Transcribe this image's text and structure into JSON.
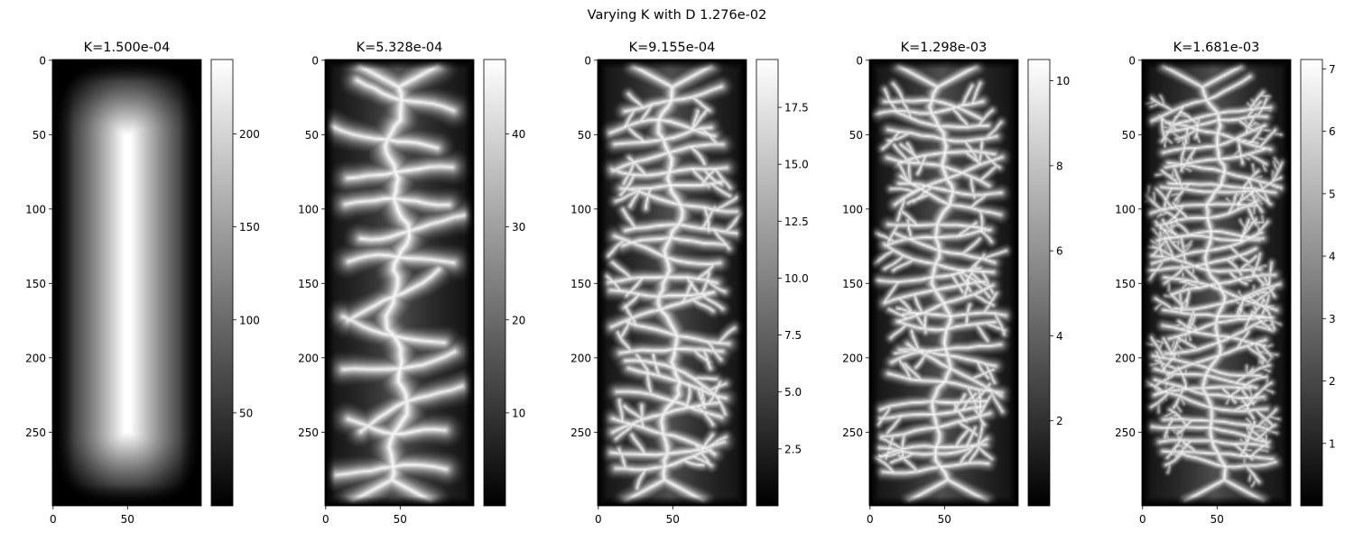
{
  "figure": {
    "title": "Varying K with D 1.276e-02"
  },
  "chart_data": [
    {
      "type": "heatmap",
      "title": "K=1.500e-04",
      "pattern": "ridge",
      "colormap": "gray",
      "x_range": [
        0,
        99
      ],
      "y_range": [
        0,
        299
      ],
      "x_ticks": [
        0,
        50
      ],
      "y_ticks": [
        0,
        50,
        100,
        150,
        200,
        250
      ],
      "y_inverted": true,
      "colorbar": {
        "min": 0,
        "max": 240,
        "ticks": [
          50,
          100,
          150,
          200
        ],
        "tick_labels": [
          "50",
          "100",
          "150",
          "200"
        ]
      }
    },
    {
      "type": "heatmap",
      "title": "K=5.328e-04",
      "pattern": "dendritic",
      "colormap": "gray",
      "x_range": [
        0,
        99
      ],
      "y_range": [
        0,
        299
      ],
      "x_ticks": [
        0,
        50
      ],
      "y_ticks": [
        0,
        50,
        100,
        150,
        200,
        250
      ],
      "y_inverted": true,
      "colorbar": {
        "min": 0,
        "max": 48,
        "ticks": [
          10,
          20,
          30,
          40
        ],
        "tick_labels": [
          "10",
          "20",
          "30",
          "40"
        ]
      }
    },
    {
      "type": "heatmap",
      "title": "K=9.155e-04",
      "pattern": "dendritic",
      "colormap": "gray",
      "x_range": [
        0,
        99
      ],
      "y_range": [
        0,
        299
      ],
      "x_ticks": [
        0,
        50
      ],
      "y_ticks": [
        0,
        50,
        100,
        150,
        200,
        250
      ],
      "y_inverted": true,
      "colorbar": {
        "min": 0,
        "max": 19.6,
        "ticks": [
          2.5,
          5.0,
          7.5,
          10.0,
          12.5,
          15.0,
          17.5
        ],
        "tick_labels": [
          "2.5",
          "5.0",
          "7.5",
          "10.0",
          "12.5",
          "15.0",
          "17.5"
        ]
      }
    },
    {
      "type": "heatmap",
      "title": "K=1.298e-03",
      "pattern": "dendritic",
      "colormap": "gray",
      "x_range": [
        0,
        99
      ],
      "y_range": [
        0,
        299
      ],
      "x_ticks": [
        0,
        50
      ],
      "y_ticks": [
        0,
        50,
        100,
        150,
        200,
        250
      ],
      "y_inverted": true,
      "colorbar": {
        "min": 0,
        "max": 10.5,
        "ticks": [
          2,
          4,
          6,
          8,
          10
        ],
        "tick_labels": [
          "2",
          "4",
          "6",
          "8",
          "10"
        ]
      }
    },
    {
      "type": "heatmap",
      "title": "K=1.681e-03",
      "pattern": "dendritic",
      "colormap": "gray",
      "x_range": [
        0,
        99
      ],
      "y_range": [
        0,
        299
      ],
      "x_ticks": [
        0,
        50
      ],
      "y_ticks": [
        0,
        50,
        100,
        150,
        200,
        250
      ],
      "y_inverted": true,
      "colorbar": {
        "min": 0,
        "max": 7.15,
        "ticks": [
          1,
          2,
          3,
          4,
          5,
          6,
          7
        ],
        "tick_labels": [
          "1",
          "2",
          "3",
          "4",
          "5",
          "6",
          "7"
        ]
      }
    }
  ]
}
